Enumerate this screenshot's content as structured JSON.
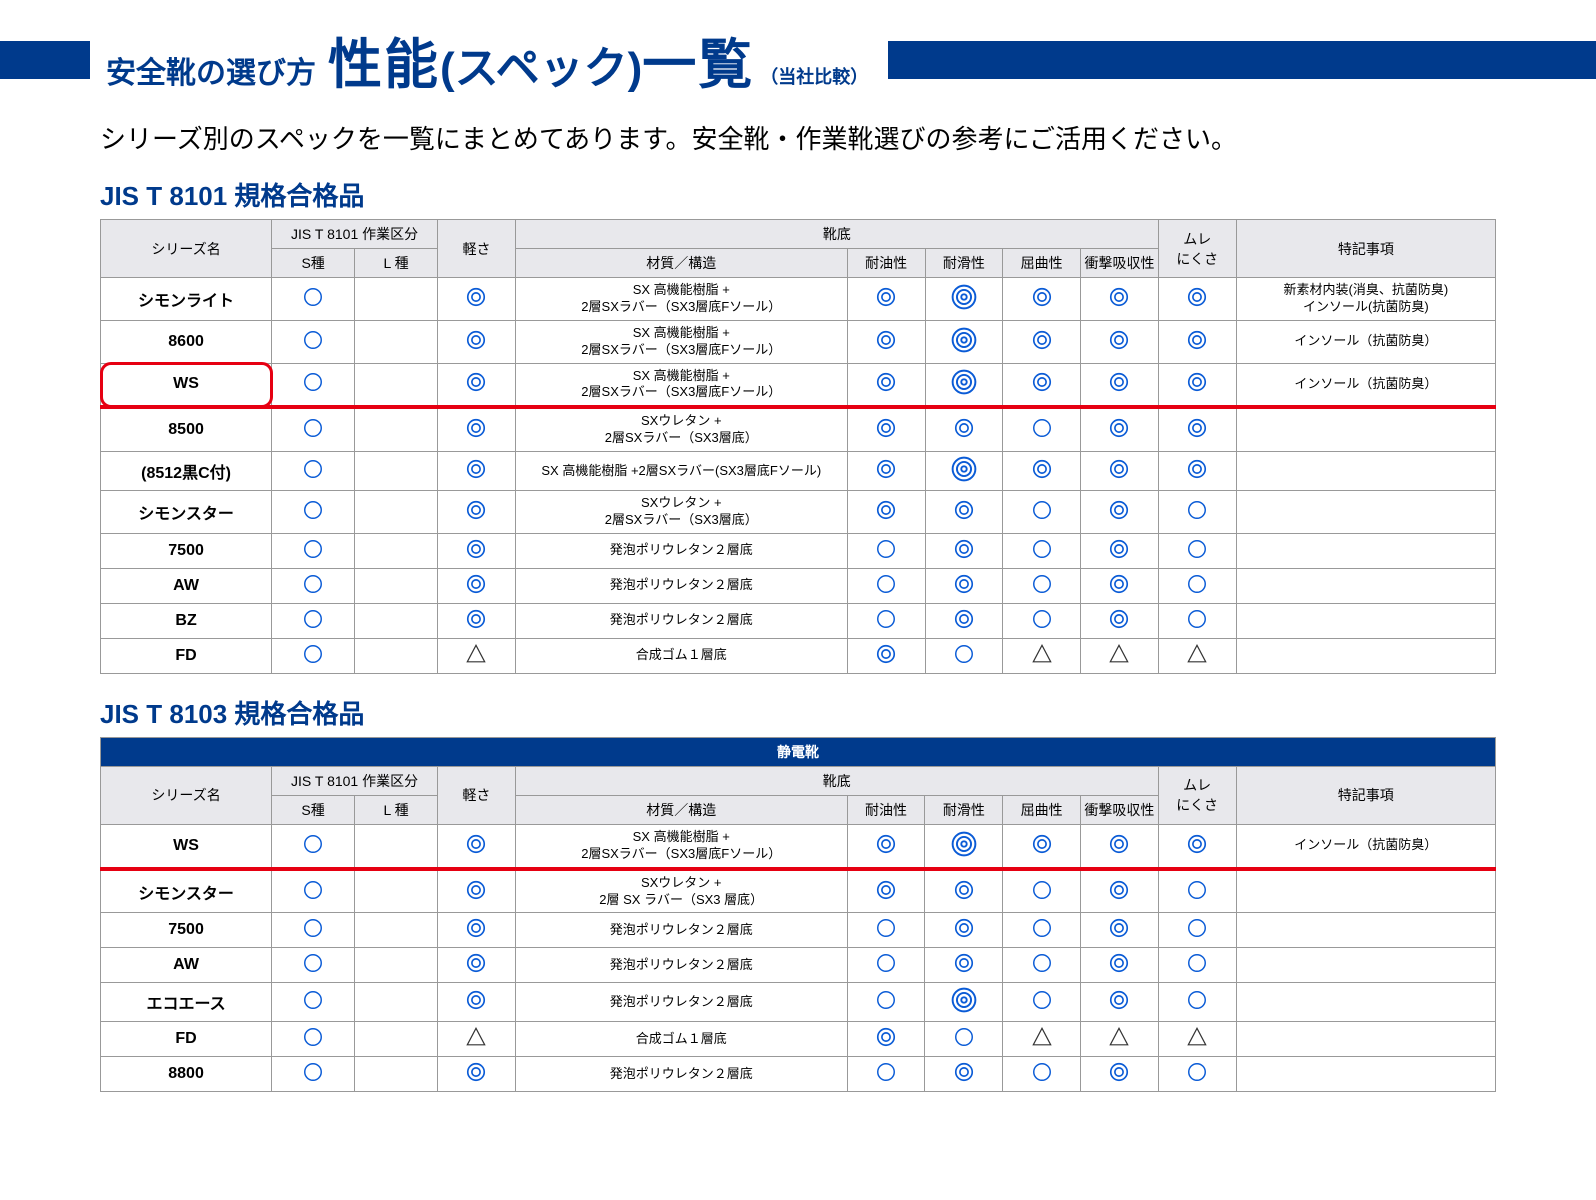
{
  "colors": {
    "brand_blue": "#003a8c",
    "header_gray": "#e8e8ec",
    "border": "#999999",
    "accent_red": "#e60012",
    "sym_blue": "#0a5bd6"
  },
  "symbols": {
    "circle": "◯",
    "double": "◎",
    "triple": "⦿",
    "triangle": "△"
  },
  "title": {
    "prefix": "安全靴の選び方",
    "main": "性能",
    "paren": "(スペック)",
    "suffix": "一覧",
    "compare": "（当社比較）"
  },
  "intro": "シリーズ別のスペックを一覧にまとめてあります。安全靴・作業靴選びの参考にご活用ください。",
  "headers": {
    "series": "シリーズ名",
    "jis_class": "JIS T 8101 作業区分",
    "s_type": "S種",
    "l_type": "L 種",
    "lightness": "軽さ",
    "sole": "靴底",
    "material": "材質／構造",
    "oil": "耐油性",
    "slip": "耐滑性",
    "flex": "屈曲性",
    "shock": "衝撃吸収性",
    "mure": "ムレ\nにくさ",
    "notes": "特記事項",
    "static": "静電靴"
  },
  "sections": [
    {
      "title": "JIS T 8101 規格合格品",
      "banner": null,
      "rows": [
        {
          "series": "シモンライト",
          "s": "circle",
          "l": "",
          "light": "double",
          "mat": "SX 高機能樹脂 +\n2層SXラバー（SX3層底Fソール）",
          "oil": "double",
          "slip": "triple",
          "flex": "double",
          "shock": "double",
          "mure": "double",
          "note": "新素材内装(消臭、抗菌防臭)\nインソール(抗菌防臭)",
          "hl": false,
          "boxed": false
        },
        {
          "series": "8600",
          "s": "circle",
          "l": "",
          "light": "double",
          "mat": "SX 高機能樹脂 +\n2層SXラバー（SX3層底Fソール）",
          "oil": "double",
          "slip": "triple",
          "flex": "double",
          "shock": "double",
          "mure": "double",
          "note": "インソール（抗菌防臭）",
          "hl": false,
          "boxed": false
        },
        {
          "series": "WS",
          "s": "circle",
          "l": "",
          "light": "double",
          "mat": "SX 高機能樹脂 +\n2層SXラバー（SX3層底Fソール）",
          "oil": "double",
          "slip": "triple",
          "flex": "double",
          "shock": "double",
          "mure": "double",
          "note": "インソール（抗菌防臭）",
          "hl": true,
          "boxed": true
        },
        {
          "series": "8500",
          "s": "circle",
          "l": "",
          "light": "double",
          "mat": "SXウレタン +\n2層SXラバー（SX3層底）",
          "oil": "double",
          "slip": "double",
          "flex": "circle",
          "shock": "double",
          "mure": "double",
          "note": "",
          "hl": false,
          "boxed": false
        },
        {
          "series": "(8512黒C付)",
          "s": "circle",
          "l": "",
          "light": "double",
          "mat": "SX 高機能樹脂 +2層SXラバー(SX3層底Fソール)",
          "oil": "double",
          "slip": "triple",
          "flex": "double",
          "shock": "double",
          "mure": "double",
          "note": "",
          "hl": false,
          "boxed": false
        },
        {
          "series": "シモンスター",
          "s": "circle",
          "l": "",
          "light": "double",
          "mat": "SXウレタン +\n2層SXラバー（SX3層底）",
          "oil": "double",
          "slip": "double",
          "flex": "circle",
          "shock": "double",
          "mure": "circle",
          "note": "",
          "hl": false,
          "boxed": false
        },
        {
          "series": "7500",
          "s": "circle",
          "l": "",
          "light": "double",
          "mat": "発泡ポリウレタン２層底",
          "oil": "circle",
          "slip": "double",
          "flex": "circle",
          "shock": "double",
          "mure": "circle",
          "note": "",
          "hl": false,
          "boxed": false
        },
        {
          "series": "AW",
          "s": "circle",
          "l": "",
          "light": "double",
          "mat": "発泡ポリウレタン２層底",
          "oil": "circle",
          "slip": "double",
          "flex": "circle",
          "shock": "double",
          "mure": "circle",
          "note": "",
          "hl": false,
          "boxed": false
        },
        {
          "series": "BZ",
          "s": "circle",
          "l": "",
          "light": "double",
          "mat": "発泡ポリウレタン２層底",
          "oil": "circle",
          "slip": "double",
          "flex": "circle",
          "shock": "double",
          "mure": "circle",
          "note": "",
          "hl": false,
          "boxed": false
        },
        {
          "series": "FD",
          "s": "circle",
          "l": "",
          "light": "triangle",
          "mat": "合成ゴム１層底",
          "oil": "double",
          "slip": "circle",
          "flex": "triangle",
          "shock": "triangle",
          "mure": "triangle",
          "note": "",
          "hl": false,
          "boxed": false
        }
      ]
    },
    {
      "title": "JIS T 8103 規格合格品",
      "banner": "static",
      "rows": [
        {
          "series": "WS",
          "s": "circle",
          "l": "",
          "light": "double",
          "mat": "SX 高機能樹脂 +\n2層SXラバー（SX3層底Fソール）",
          "oil": "double",
          "slip": "triple",
          "flex": "double",
          "shock": "double",
          "mure": "double",
          "note": "インソール（抗菌防臭）",
          "hl": true,
          "boxed": false
        },
        {
          "series": "シモンスター",
          "s": "circle",
          "l": "",
          "light": "double",
          "mat": "SXウレタン +\n2層 SX ラバー（SX3 層底）",
          "oil": "double",
          "slip": "double",
          "flex": "circle",
          "shock": "double",
          "mure": "circle",
          "note": "",
          "hl": false,
          "boxed": false
        },
        {
          "series": "7500",
          "s": "circle",
          "l": "",
          "light": "double",
          "mat": "発泡ポリウレタン２層底",
          "oil": "circle",
          "slip": "double",
          "flex": "circle",
          "shock": "double",
          "mure": "circle",
          "note": "",
          "hl": false,
          "boxed": false
        },
        {
          "series": "AW",
          "s": "circle",
          "l": "",
          "light": "double",
          "mat": "発泡ポリウレタン２層底",
          "oil": "circle",
          "slip": "double",
          "flex": "circle",
          "shock": "double",
          "mure": "circle",
          "note": "",
          "hl": false,
          "boxed": false
        },
        {
          "series": "エコエース",
          "s": "circle",
          "l": "",
          "light": "double",
          "mat": "発泡ポリウレタン２層底",
          "oil": "circle",
          "slip": "triple",
          "flex": "circle",
          "shock": "double",
          "mure": "circle",
          "note": "",
          "hl": false,
          "boxed": false
        },
        {
          "series": "FD",
          "s": "circle",
          "l": "",
          "light": "triangle",
          "mat": "合成ゴム１層底",
          "oil": "double",
          "slip": "circle",
          "flex": "triangle",
          "shock": "triangle",
          "mure": "triangle",
          "note": "",
          "hl": false,
          "boxed": false
        },
        {
          "series": "8800",
          "s": "circle",
          "l": "",
          "light": "double",
          "mat": "発泡ポリウレタン２層底",
          "oil": "circle",
          "slip": "double",
          "flex": "circle",
          "shock": "double",
          "mure": "circle",
          "note": "",
          "hl": false,
          "boxed": false
        }
      ]
    }
  ]
}
